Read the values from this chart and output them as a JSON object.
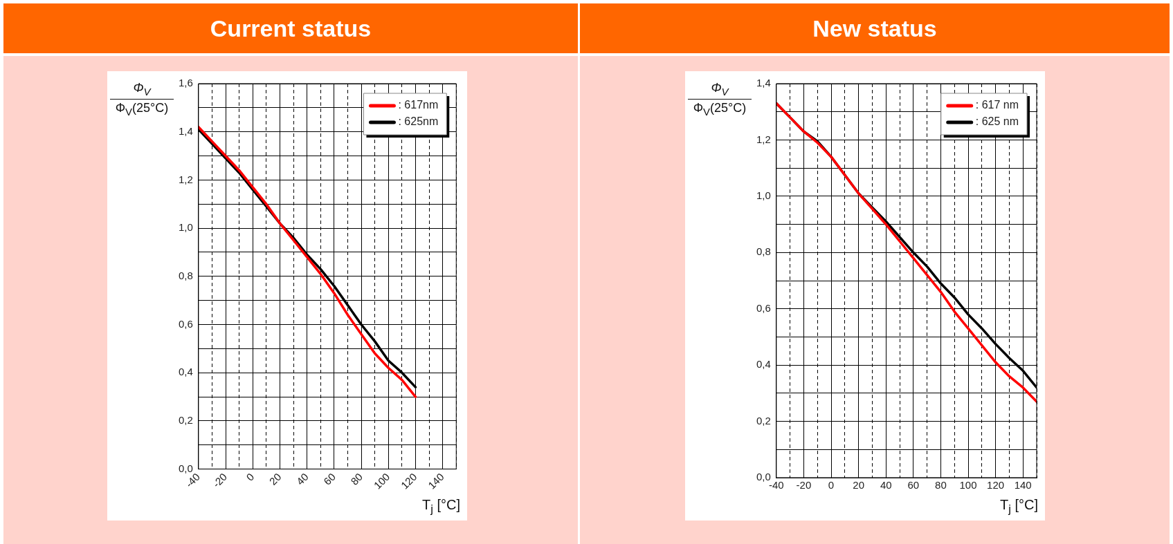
{
  "chart_data": [
    {
      "type": "line",
      "title": "Current status",
      "xlabel": "T$_{j}$ [°C]",
      "ylabel": "Φ$_{V}$\nΦ$_{V}$(25°C)",
      "xlim": [
        -40,
        150
      ],
      "xticks": [
        -40,
        {
          "value": -30,
          "label": null
        },
        -20,
        {
          "value": -10,
          "label": null
        },
        0,
        {
          "value": 10,
          "label": null
        },
        20,
        {
          "value": 30,
          "label": null
        },
        40,
        {
          "value": 50,
          "label": null
        },
        60,
        {
          "value": 70,
          "label": null
        },
        80,
        {
          "value": 90,
          "label": null
        },
        100,
        {
          "value": 110,
          "label": null
        },
        120,
        {
          "value": 130,
          "label": null
        },
        140,
        {
          "value": 150,
          "label": null
        }
      ],
      "ylim": [
        0,
        1.6
      ],
      "yticks": [
        {
          "value": 0,
          "label": "0,0"
        },
        {
          "value": 0.1,
          "label": null
        },
        {
          "value": 0.2,
          "label": "0,2"
        },
        {
          "value": 0.3,
          "label": null
        },
        {
          "value": 0.4,
          "label": "0,4"
        },
        {
          "value": 0.5,
          "label": null
        },
        {
          "value": 0.6,
          "label": "0,6"
        },
        {
          "value": 0.7,
          "label": null
        },
        {
          "value": 0.8,
          "label": "0,8"
        },
        {
          "value": 0.9,
          "label": null
        },
        {
          "value": 1.0,
          "label": "1,0"
        },
        {
          "value": 1.1,
          "label": null
        },
        {
          "value": 1.2,
          "label": "1,2"
        },
        {
          "value": 1.3,
          "label": null
        },
        {
          "value": 1.4,
          "label": "1,4"
        },
        {
          "value": 1.5,
          "label": null
        },
        {
          "value": 1.6,
          "label": "1,6"
        }
      ],
      "x": [
        -40,
        -30,
        -20,
        -10,
        0,
        10,
        20,
        30,
        40,
        50,
        60,
        70,
        80,
        90,
        100,
        110,
        120
      ],
      "series": [
        {
          "name": ": 617nm",
          "color": "#ff0000",
          "values": [
            1.42,
            1.36,
            1.3,
            1.24,
            1.17,
            1.1,
            1.02,
            0.95,
            0.88,
            0.81,
            0.73,
            0.64,
            0.56,
            0.48,
            0.42,
            0.37,
            0.3
          ]
        },
        {
          "name": ": 625nm",
          "color": "#000000",
          "values": [
            1.41,
            1.35,
            1.29,
            1.23,
            1.16,
            1.09,
            1.02,
            0.96,
            0.89,
            0.83,
            0.76,
            0.68,
            0.6,
            0.53,
            0.45,
            0.4,
            0.34
          ]
        }
      ],
      "grid": true,
      "legend": "top right",
      "marker": "none",
      "line_style": "solid"
    },
    {
      "type": "line",
      "title": "New status",
      "xlabel": "T$_{j}$ [°C]",
      "ylabel": "Φ$_{V}$\nΦ$_{V}$(25°C)",
      "xlim": [
        -40,
        150
      ],
      "xticks": [
        -40,
        {
          "value": -30,
          "label": null
        },
        -20,
        {
          "value": -10,
          "label": null
        },
        0,
        {
          "value": 10,
          "label": null
        },
        20,
        {
          "value": 30,
          "label": null
        },
        40,
        {
          "value": 50,
          "label": null
        },
        60,
        {
          "value": 70,
          "label": null
        },
        80,
        {
          "value": 90,
          "label": null
        },
        100,
        {
          "value": 110,
          "label": null
        },
        120,
        {
          "value": 130,
          "label": null
        },
        140,
        {
          "value": 150,
          "label": null
        }
      ],
      "ylim": [
        0,
        1.4
      ],
      "yticks": [
        {
          "value": 0,
          "label": "0,0"
        },
        {
          "value": 0.1,
          "label": null
        },
        {
          "value": 0.2,
          "label": "0,2"
        },
        {
          "value": 0.3,
          "label": null
        },
        {
          "value": 0.4,
          "label": "0,4"
        },
        {
          "value": 0.5,
          "label": null
        },
        {
          "value": 0.6,
          "label": "0,6"
        },
        {
          "value": 0.7,
          "label": null
        },
        {
          "value": 0.8,
          "label": "0,8"
        },
        {
          "value": 0.9,
          "label": null
        },
        {
          "value": 1.0,
          "label": "1,0"
        },
        {
          "value": 1.1,
          "label": null
        },
        {
          "value": 1.2,
          "label": "1,2"
        },
        {
          "value": 1.3,
          "label": null
        },
        {
          "value": 1.4,
          "label": "1,4"
        }
      ],
      "x": [
        -40,
        -30,
        -20,
        -10,
        0,
        10,
        20,
        30,
        40,
        50,
        60,
        70,
        80,
        90,
        100,
        110,
        120,
        130,
        140,
        150
      ],
      "series": [
        {
          "name": ": 617 nm",
          "color": "#ff0000",
          "values": [
            1.33,
            1.28,
            1.23,
            1.19,
            1.14,
            1.075,
            1.01,
            0.955,
            0.9,
            0.84,
            0.78,
            0.72,
            0.66,
            0.59,
            0.53,
            0.47,
            0.41,
            0.36,
            0.32,
            0.27
          ]
        },
        {
          "name": ": 625 nm",
          "color": "#000000",
          "values": [
            1.33,
            1.28,
            1.23,
            1.195,
            1.14,
            1.075,
            1.01,
            0.96,
            0.91,
            0.855,
            0.8,
            0.75,
            0.69,
            0.64,
            0.58,
            0.53,
            0.475,
            0.425,
            0.38,
            0.32
          ]
        }
      ],
      "grid": true,
      "legend": "top right",
      "marker": "none",
      "line_style": "solid"
    }
  ]
}
